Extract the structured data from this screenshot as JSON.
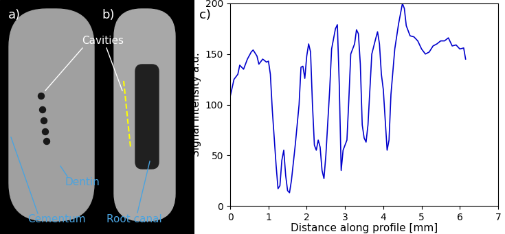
{
  "chart_data": {
    "type": "line",
    "panel_label": "c)",
    "x_label": "Distance along profile [mm]",
    "y_label": "Signal intensity a.u.",
    "color": "#0000cc",
    "xlim": [
      0,
      7
    ],
    "ylim": [
      0,
      200
    ],
    "xticks": [
      0,
      1,
      2,
      3,
      4,
      5,
      6,
      7
    ],
    "yticks": [
      0,
      50,
      100,
      150,
      200
    ],
    "x": [
      0,
      0.1,
      0.2,
      0.25,
      0.35,
      0.45,
      0.55,
      0.6,
      0.7,
      0.75,
      0.85,
      0.95,
      1.0,
      1.05,
      1.1,
      1.2,
      1.25,
      1.3,
      1.35,
      1.4,
      1.45,
      1.5,
      1.55,
      1.6,
      1.7,
      1.8,
      1.85,
      1.9,
      1.95,
      2.0,
      2.05,
      2.1,
      2.15,
      2.2,
      2.25,
      2.3,
      2.35,
      2.4,
      2.45,
      2.5,
      2.6,
      2.65,
      2.75,
      2.8,
      2.85,
      2.9,
      2.95,
      3.0,
      3.05,
      3.1,
      3.15,
      3.25,
      3.3,
      3.35,
      3.4,
      3.45,
      3.5,
      3.55,
      3.6,
      3.7,
      3.8,
      3.85,
      3.9,
      3.95,
      4.0,
      4.05,
      4.1,
      4.15,
      4.2,
      4.3,
      4.4,
      4.5,
      4.55,
      4.6,
      4.7,
      4.8,
      4.9,
      5.0,
      5.1,
      5.2,
      5.3,
      5.4,
      5.5,
      5.6,
      5.7,
      5.8,
      5.9,
      6.0,
      6.1,
      6.15
    ],
    "values": [
      108,
      125,
      130,
      139,
      135,
      145,
      152,
      154,
      148,
      140,
      145,
      142,
      143,
      130,
      95,
      40,
      17,
      20,
      45,
      55,
      30,
      15,
      13,
      25,
      60,
      100,
      137,
      138,
      126,
      148,
      160,
      152,
      100,
      60,
      55,
      65,
      58,
      35,
      27,
      50,
      115,
      155,
      175,
      179,
      120,
      35,
      55,
      60,
      65,
      105,
      150,
      160,
      174,
      170,
      140,
      80,
      67,
      63,
      80,
      150,
      165,
      172,
      160,
      130,
      115,
      85,
      55,
      65,
      110,
      155,
      180,
      200,
      195,
      178,
      168,
      167,
      163,
      155,
      150,
      152,
      158,
      160,
      163,
      163,
      166,
      158,
      159,
      155,
      156,
      145
    ]
  },
  "images": {
    "panel_a": "a)",
    "panel_b": "b)",
    "cavities": "Cavities",
    "dentin": "Dentin",
    "cementum": "Cementum",
    "root_canal": "Root canal"
  }
}
